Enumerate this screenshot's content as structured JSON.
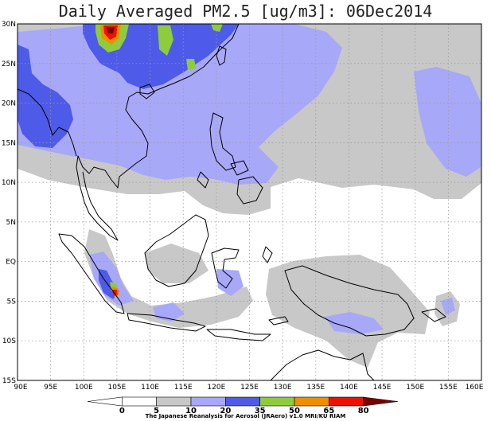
{
  "title": "Daily Averaged PM2.5 [ug/m3]: 06Dec2014",
  "credit": "The Japanese Reanalysis for Aerosol (JRAero) v1.0 MRI/KU RIAM",
  "lat_labels": [
    "30N",
    "25N",
    "20N",
    "15N",
    "10N",
    "5N",
    "EQ",
    "5S",
    "10S",
    "15S"
  ],
  "lon_labels": [
    "90E",
    "95E",
    "100E",
    "105E",
    "110E",
    "115E",
    "120E",
    "125E",
    "130E",
    "135E",
    "140E",
    "145E",
    "150E",
    "155E",
    "160E"
  ],
  "colorbar": {
    "thresholds": [
      "0",
      "5",
      "10",
      "20",
      "35",
      "50",
      "65",
      "80"
    ],
    "colors": [
      "#ffffff",
      "#ffffff",
      "#c8c8c8",
      "#a8a8f8",
      "#4e5ae8",
      "#8ecc3c",
      "#ee8e00",
      "#ee1000",
      "#7a0000"
    ]
  },
  "colors": {
    "level_5_10": "#c8c8c8",
    "level_10_20": "#a8a8f8",
    "level_20_35": "#4e5ae8",
    "level_35_50": "#8ecc3c",
    "level_50_65": "#ee8e00",
    "level_65_80": "#ee1000",
    "level_above_80": "#7a0000",
    "coastline": "#000000",
    "grid": "#9a9a9a"
  }
}
